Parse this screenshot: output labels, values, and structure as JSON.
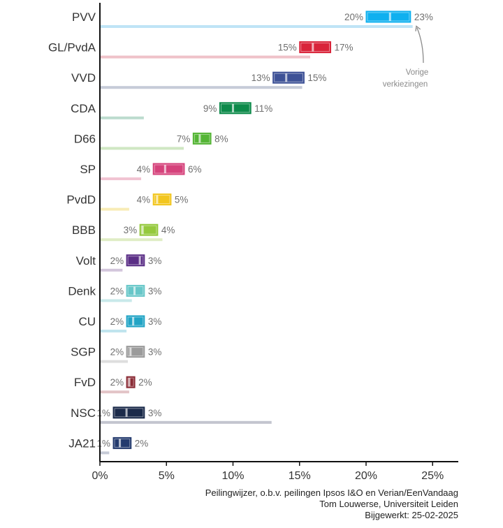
{
  "chart_data": {
    "type": "bar",
    "x_unit": "%",
    "xlim": [
      0,
      27
    ],
    "xticks": [
      0,
      5,
      10,
      15,
      20,
      25
    ],
    "xtick_labels": [
      "0%",
      "5%",
      "10%",
      "15%",
      "20%",
      "25%"
    ],
    "legend": "none",
    "grid": false,
    "annotation": [
      "Vorige",
      "verkiezingen"
    ],
    "parties": [
      {
        "name": "PVV",
        "low": 20,
        "high": 23,
        "low_label": "20%",
        "high_label": "23%",
        "mid": 21.8,
        "previous": 23.5,
        "color": "#0fb0ef",
        "prev_color": "#bfe4f6"
      },
      {
        "name": "GL/PvdA",
        "low": 15,
        "high": 17,
        "low_label": "15%",
        "high_label": "17%",
        "mid": 16.0,
        "previous": 15.8,
        "color": "#d9243a",
        "prev_color": "#efc2c9"
      },
      {
        "name": "VVD",
        "low": 13,
        "high": 15,
        "low_label": "13%",
        "high_label": "15%",
        "mid": 14.0,
        "previous": 15.2,
        "color": "#3d5196",
        "prev_color": "#c6cbd8"
      },
      {
        "name": "CDA",
        "low": 9,
        "high": 11,
        "low_label": "9%",
        "high_label": "11%",
        "mid": 10.0,
        "previous": 3.3,
        "color": "#0d8a4a",
        "prev_color": "#bcdcce"
      },
      {
        "name": "D66",
        "low": 7,
        "high": 8,
        "low_label": "7%",
        "high_label": "8%",
        "mid": 7.5,
        "previous": 6.3,
        "color": "#54b535",
        "prev_color": "#cfe7c3"
      },
      {
        "name": "SP",
        "low": 4,
        "high": 6,
        "low_label": "4%",
        "high_label": "6%",
        "mid": 4.9,
        "previous": 3.1,
        "color": "#d5427b",
        "prev_color": "#f1c4d2"
      },
      {
        "name": "PvdD",
        "low": 4,
        "high": 5,
        "low_label": "4%",
        "high_label": "5%",
        "mid": 4.3,
        "previous": 2.2,
        "color": "#f2c61f",
        "prev_color": "#f8ecb6"
      },
      {
        "name": "BBB",
        "low": 3,
        "high": 4,
        "low_label": "3%",
        "high_label": "4%",
        "mid": 3.2,
        "previous": 4.7,
        "color": "#95c93d",
        "prev_color": "#dfedc5"
      },
      {
        "name": "Volt",
        "low": 2,
        "high": 3,
        "low_label": "2%",
        "high_label": "3%",
        "mid": 3.0,
        "previous": 1.7,
        "color": "#5b2f86",
        "prev_color": "#d3c6dc"
      },
      {
        "name": "Denk",
        "low": 2,
        "high": 3,
        "low_label": "2%",
        "high_label": "3%",
        "mid": 2.6,
        "previous": 2.4,
        "color": "#68c7c9",
        "prev_color": "#c8e9ea"
      },
      {
        "name": "CU",
        "low": 2,
        "high": 3,
        "low_label": "2%",
        "high_label": "3%",
        "mid": 2.5,
        "previous": 2.0,
        "color": "#22a4c5",
        "prev_color": "#c0e4ee"
      },
      {
        "name": "SGP",
        "low": 2,
        "high": 3,
        "low_label": "2%",
        "high_label": "3%",
        "mid": 2.3,
        "previous": 2.1,
        "color": "#9b9b9b",
        "prev_color": "#dedede"
      },
      {
        "name": "FvD",
        "low": 2,
        "high": 2,
        "low_label": "2%",
        "high_label": "2%",
        "mid": 2.1,
        "previous": 2.2,
        "color": "#8b2c36",
        "prev_color": "#e3c4c7"
      },
      {
        "name": "NSC",
        "low": 1,
        "high": 3,
        "low_label": "1%",
        "high_label": "3%",
        "mid": 2.0,
        "previous": 12.9,
        "color": "#1b2a4a",
        "prev_color": "#c3c5cf"
      },
      {
        "name": "JA21",
        "low": 1,
        "high": 2,
        "low_label": "1%",
        "high_label": "2%",
        "mid": 1.5,
        "previous": 0.7,
        "color": "#243b6e",
        "prev_color": "#c6cad6"
      }
    ]
  },
  "caption": {
    "line1": "Peilingwijzer, o.b.v. peilingen Ipsos I&O en Verian/EenVandaag",
    "line2": "Tom Louwerse, Universiteit Leiden",
    "line3": "Bijgewerkt: 25-02-2025"
  }
}
